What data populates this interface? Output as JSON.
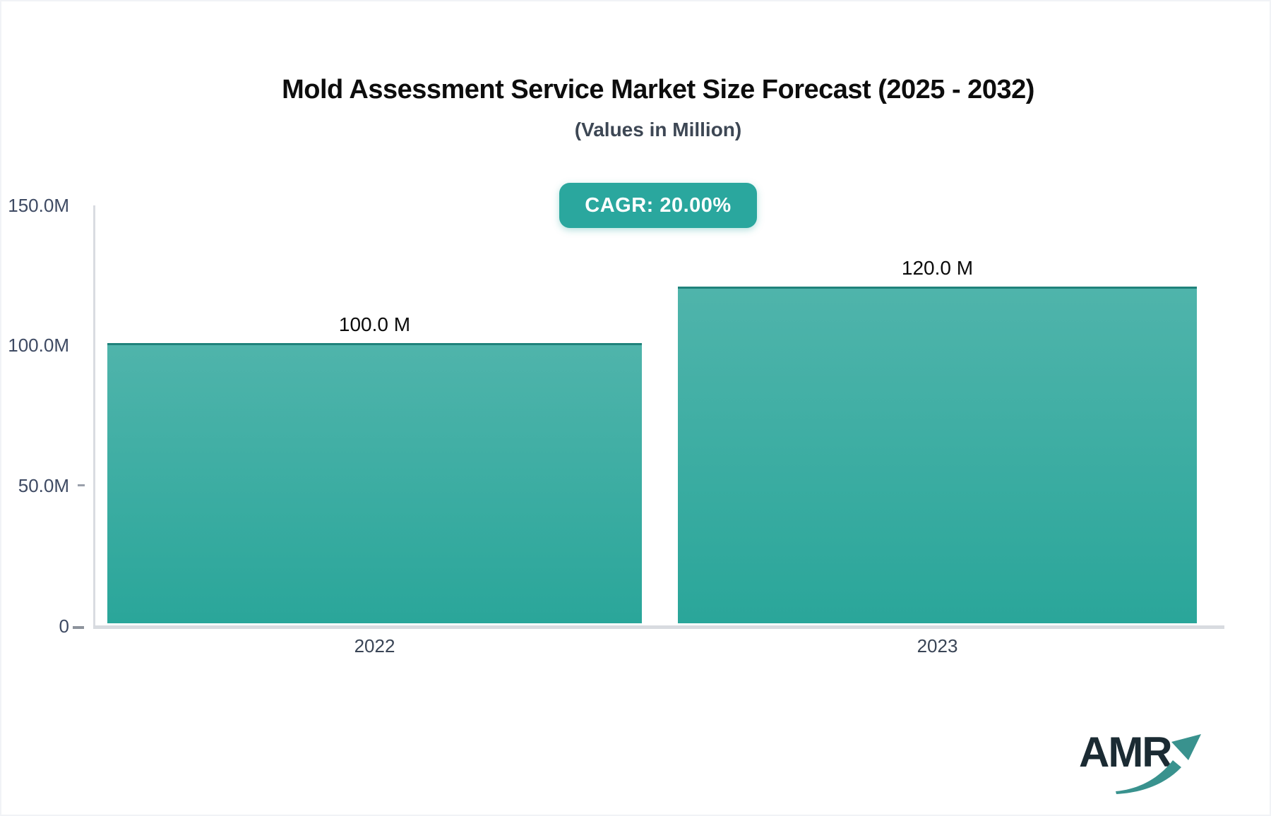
{
  "header": {
    "title": "Mold Assessment Service Market Size Forecast (2025 - 2032)",
    "subtitle": "(Values in Million)"
  },
  "badge": {
    "label": "CAGR: 20.00%",
    "background": "#2aa79e",
    "text_color": "#ffffff"
  },
  "chart_data": {
    "type": "bar",
    "title": "Mold Assessment Service Market Size Forecast (2025 - 2032)",
    "subtitle": "(Values in Million)",
    "unit": "Million",
    "categories": [
      "2022",
      "2023"
    ],
    "values": [
      100.0,
      120.0
    ],
    "value_labels": [
      "100.0 M",
      "120.0 M"
    ],
    "xlabel": "",
    "ylabel": "",
    "ylim": [
      0,
      150
    ],
    "yticks": [
      {
        "value": 150,
        "label": "150.0M"
      },
      {
        "value": 100,
        "label": "100.0M"
      },
      {
        "value": 50,
        "label": "50.0M"
      },
      {
        "value": 0,
        "label": "0"
      }
    ],
    "grid": false,
    "legend": false,
    "bar_color_top": "#4fb4ab",
    "bar_color_bottom": "#2aa69a",
    "bar_border_color": "#1f827b"
  },
  "logo": {
    "text": "AMR",
    "text_color": "#1b2b33",
    "arrow_color": "#39928e"
  }
}
